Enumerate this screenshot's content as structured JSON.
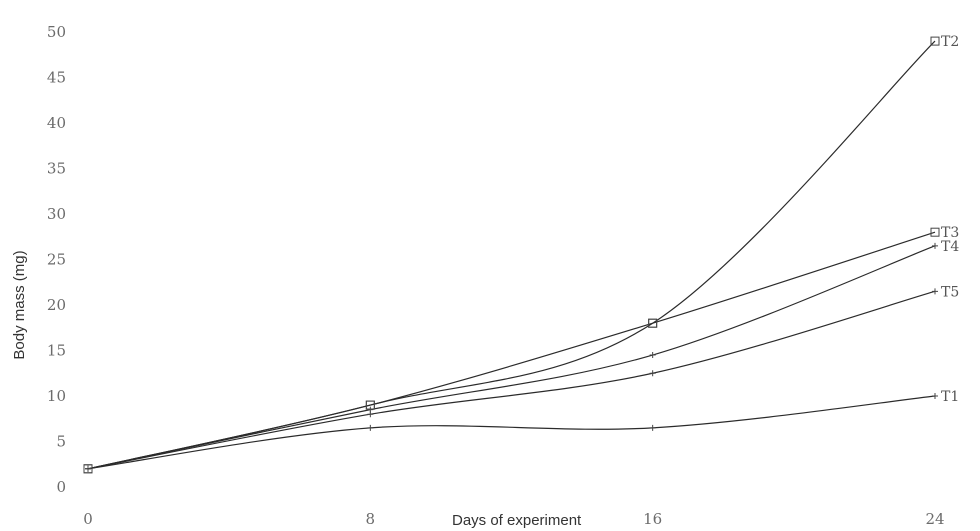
{
  "chart_data": {
    "type": "line",
    "xlabel": "Days of experiment",
    "ylabel": "Body mass (mg)",
    "x": [
      0,
      8,
      16,
      24
    ],
    "xlim": [
      0,
      24
    ],
    "ylim": [
      0,
      50
    ],
    "yticks": [
      0,
      5,
      10,
      15,
      20,
      25,
      30,
      35,
      40,
      45,
      50
    ],
    "grid": false,
    "series": [
      {
        "name": "T1",
        "values": [
          2,
          6.5,
          6.5,
          10
        ]
      },
      {
        "name": "T2",
        "values": [
          2,
          9,
          18,
          49
        ]
      },
      {
        "name": "T3",
        "values": [
          2,
          9,
          18,
          28
        ]
      },
      {
        "name": "T4",
        "values": [
          2,
          8.5,
          14.5,
          26.5
        ]
      },
      {
        "name": "T5",
        "values": [
          2,
          8,
          12.5,
          21.5
        ]
      }
    ]
  }
}
